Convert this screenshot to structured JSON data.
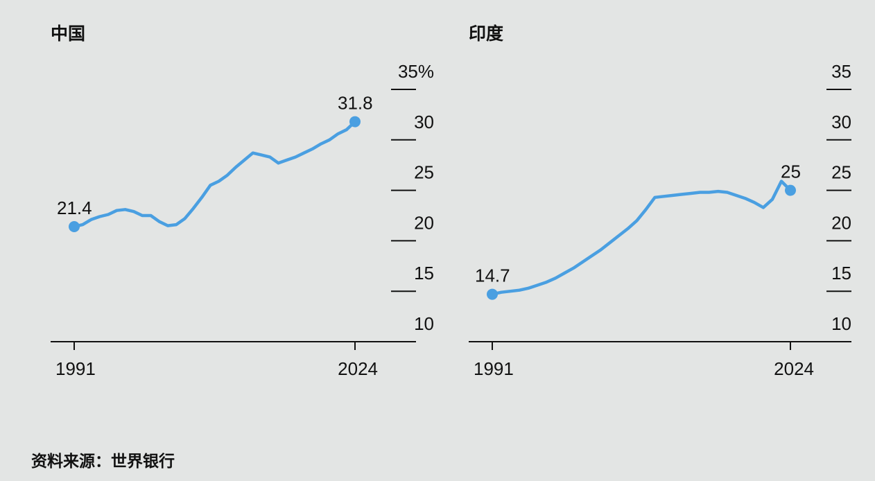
{
  "source": "资料来源：世界银行",
  "chart_data": [
    {
      "type": "line",
      "title": "中国",
      "x_tick_labels": [
        "1991",
        "2024"
      ],
      "y_tick_labels": [
        "35%",
        "30",
        "25",
        "20",
        "15",
        "10"
      ],
      "ylim": [
        10,
        35
      ],
      "grid": false,
      "color": "#4a9fe1",
      "start_label": "21.4",
      "end_label": "31.8",
      "series": [
        {
          "x": [
            1991,
            1992,
            1993,
            1994,
            1995,
            1996,
            1997,
            1998,
            1999,
            2000,
            2001,
            2002,
            2003,
            2004,
            2005,
            2006,
            2007,
            2008,
            2009,
            2010,
            2011,
            2012,
            2013,
            2014,
            2015,
            2016,
            2017,
            2018,
            2019,
            2020,
            2021,
            2022,
            2023,
            2024
          ],
          "values": [
            21.4,
            21.6,
            22.1,
            22.4,
            22.6,
            23.0,
            23.1,
            22.9,
            22.5,
            22.5,
            21.9,
            21.5,
            21.6,
            22.2,
            23.2,
            24.3,
            25.5,
            25.9,
            26.5,
            27.3,
            28.0,
            28.7,
            28.5,
            28.3,
            27.7,
            28.0,
            28.3,
            28.7,
            29.1,
            29.6,
            30.0,
            30.6,
            31.0,
            31.8
          ]
        }
      ]
    },
    {
      "type": "line",
      "title": "印度",
      "x_tick_labels": [
        "1991",
        "2024"
      ],
      "y_tick_labels": [
        "35",
        "30",
        "25",
        "20",
        "15",
        "10"
      ],
      "ylim": [
        10,
        35
      ],
      "grid": false,
      "color": "#4a9fe1",
      "start_label": "14.7",
      "end_label": "25",
      "series": [
        {
          "x": [
            1991,
            1992,
            1993,
            1994,
            1995,
            1996,
            1997,
            1998,
            1999,
            2000,
            2001,
            2002,
            2003,
            2004,
            2005,
            2006,
            2007,
            2008,
            2009,
            2010,
            2011,
            2012,
            2013,
            2014,
            2015,
            2016,
            2017,
            2018,
            2019,
            2020,
            2021,
            2022,
            2023,
            2024
          ],
          "values": [
            14.7,
            14.9,
            15.0,
            15.1,
            15.3,
            15.6,
            15.9,
            16.3,
            16.8,
            17.3,
            17.9,
            18.5,
            19.1,
            19.8,
            20.5,
            21.2,
            22.0,
            23.1,
            24.3,
            24.4,
            24.5,
            24.6,
            24.7,
            24.8,
            24.8,
            24.9,
            24.8,
            24.5,
            24.2,
            23.8,
            23.3,
            24.1,
            25.9,
            25.0
          ]
        }
      ]
    }
  ]
}
